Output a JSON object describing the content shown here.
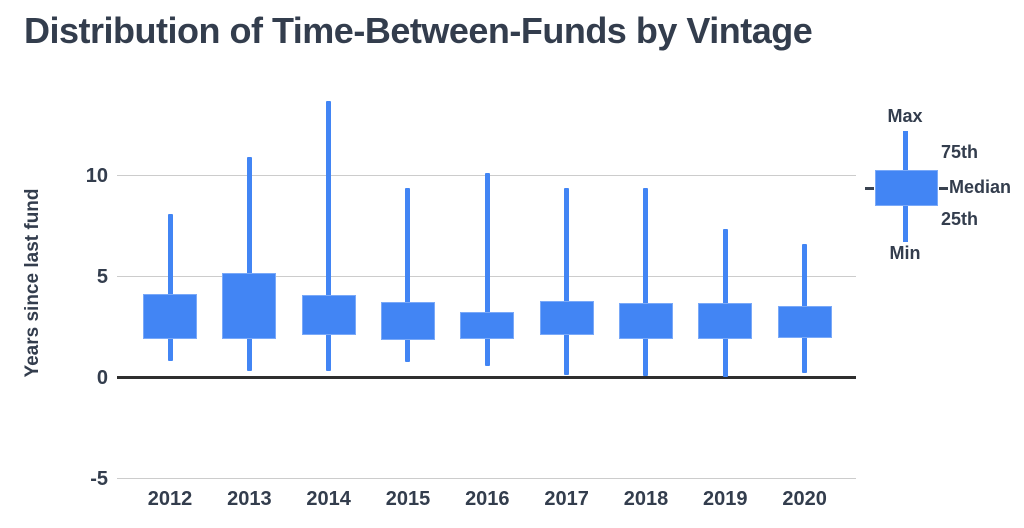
{
  "colors": {
    "box_fill": "#4285f4",
    "box_border": "#7aa9f8",
    "text": "#333d4d",
    "grid": "#cccccc",
    "axis": "#2e2e2e",
    "background": "#ffffff"
  },
  "chart_data": {
    "type": "boxplot",
    "title": "Distribution of Time-Between-Funds by Vintage",
    "xlabel": "",
    "ylabel": "Years since last fund",
    "categories": [
      "2012",
      "2013",
      "2014",
      "2015",
      "2016",
      "2017",
      "2018",
      "2019",
      "2020"
    ],
    "y_ticks": [
      10,
      5,
      0,
      -5
    ],
    "ylim": [
      -5,
      14
    ],
    "grid": true,
    "legend_position": "right",
    "legend": {
      "max": "Max",
      "p75": "75th",
      "median": "Median",
      "p25": "25th",
      "min": "Min"
    },
    "series": [
      {
        "category": "2012",
        "min": 0.8,
        "q1": 1.9,
        "q3": 4.15,
        "max": 8.1
      },
      {
        "category": "2013",
        "min": 0.3,
        "q1": 1.9,
        "q3": 5.15,
        "max": 10.9
      },
      {
        "category": "2014",
        "min": 0.3,
        "q1": 2.1,
        "q3": 4.1,
        "max": 13.7
      },
      {
        "category": "2015",
        "min": 0.75,
        "q1": 1.85,
        "q3": 3.75,
        "max": 9.4
      },
      {
        "category": "2016",
        "min": 0.55,
        "q1": 1.9,
        "q3": 3.25,
        "max": 10.1
      },
      {
        "category": "2017",
        "min": 0.1,
        "q1": 2.1,
        "q3": 3.8,
        "max": 9.4
      },
      {
        "category": "2018",
        "min": 0.05,
        "q1": 1.9,
        "q3": 3.7,
        "max": 9.4
      },
      {
        "category": "2019",
        "min": 0.0,
        "q1": 1.9,
        "q3": 3.7,
        "max": 7.35
      },
      {
        "category": "2020",
        "min": 0.2,
        "q1": 1.95,
        "q3": 3.55,
        "max": 6.6
      }
    ]
  }
}
